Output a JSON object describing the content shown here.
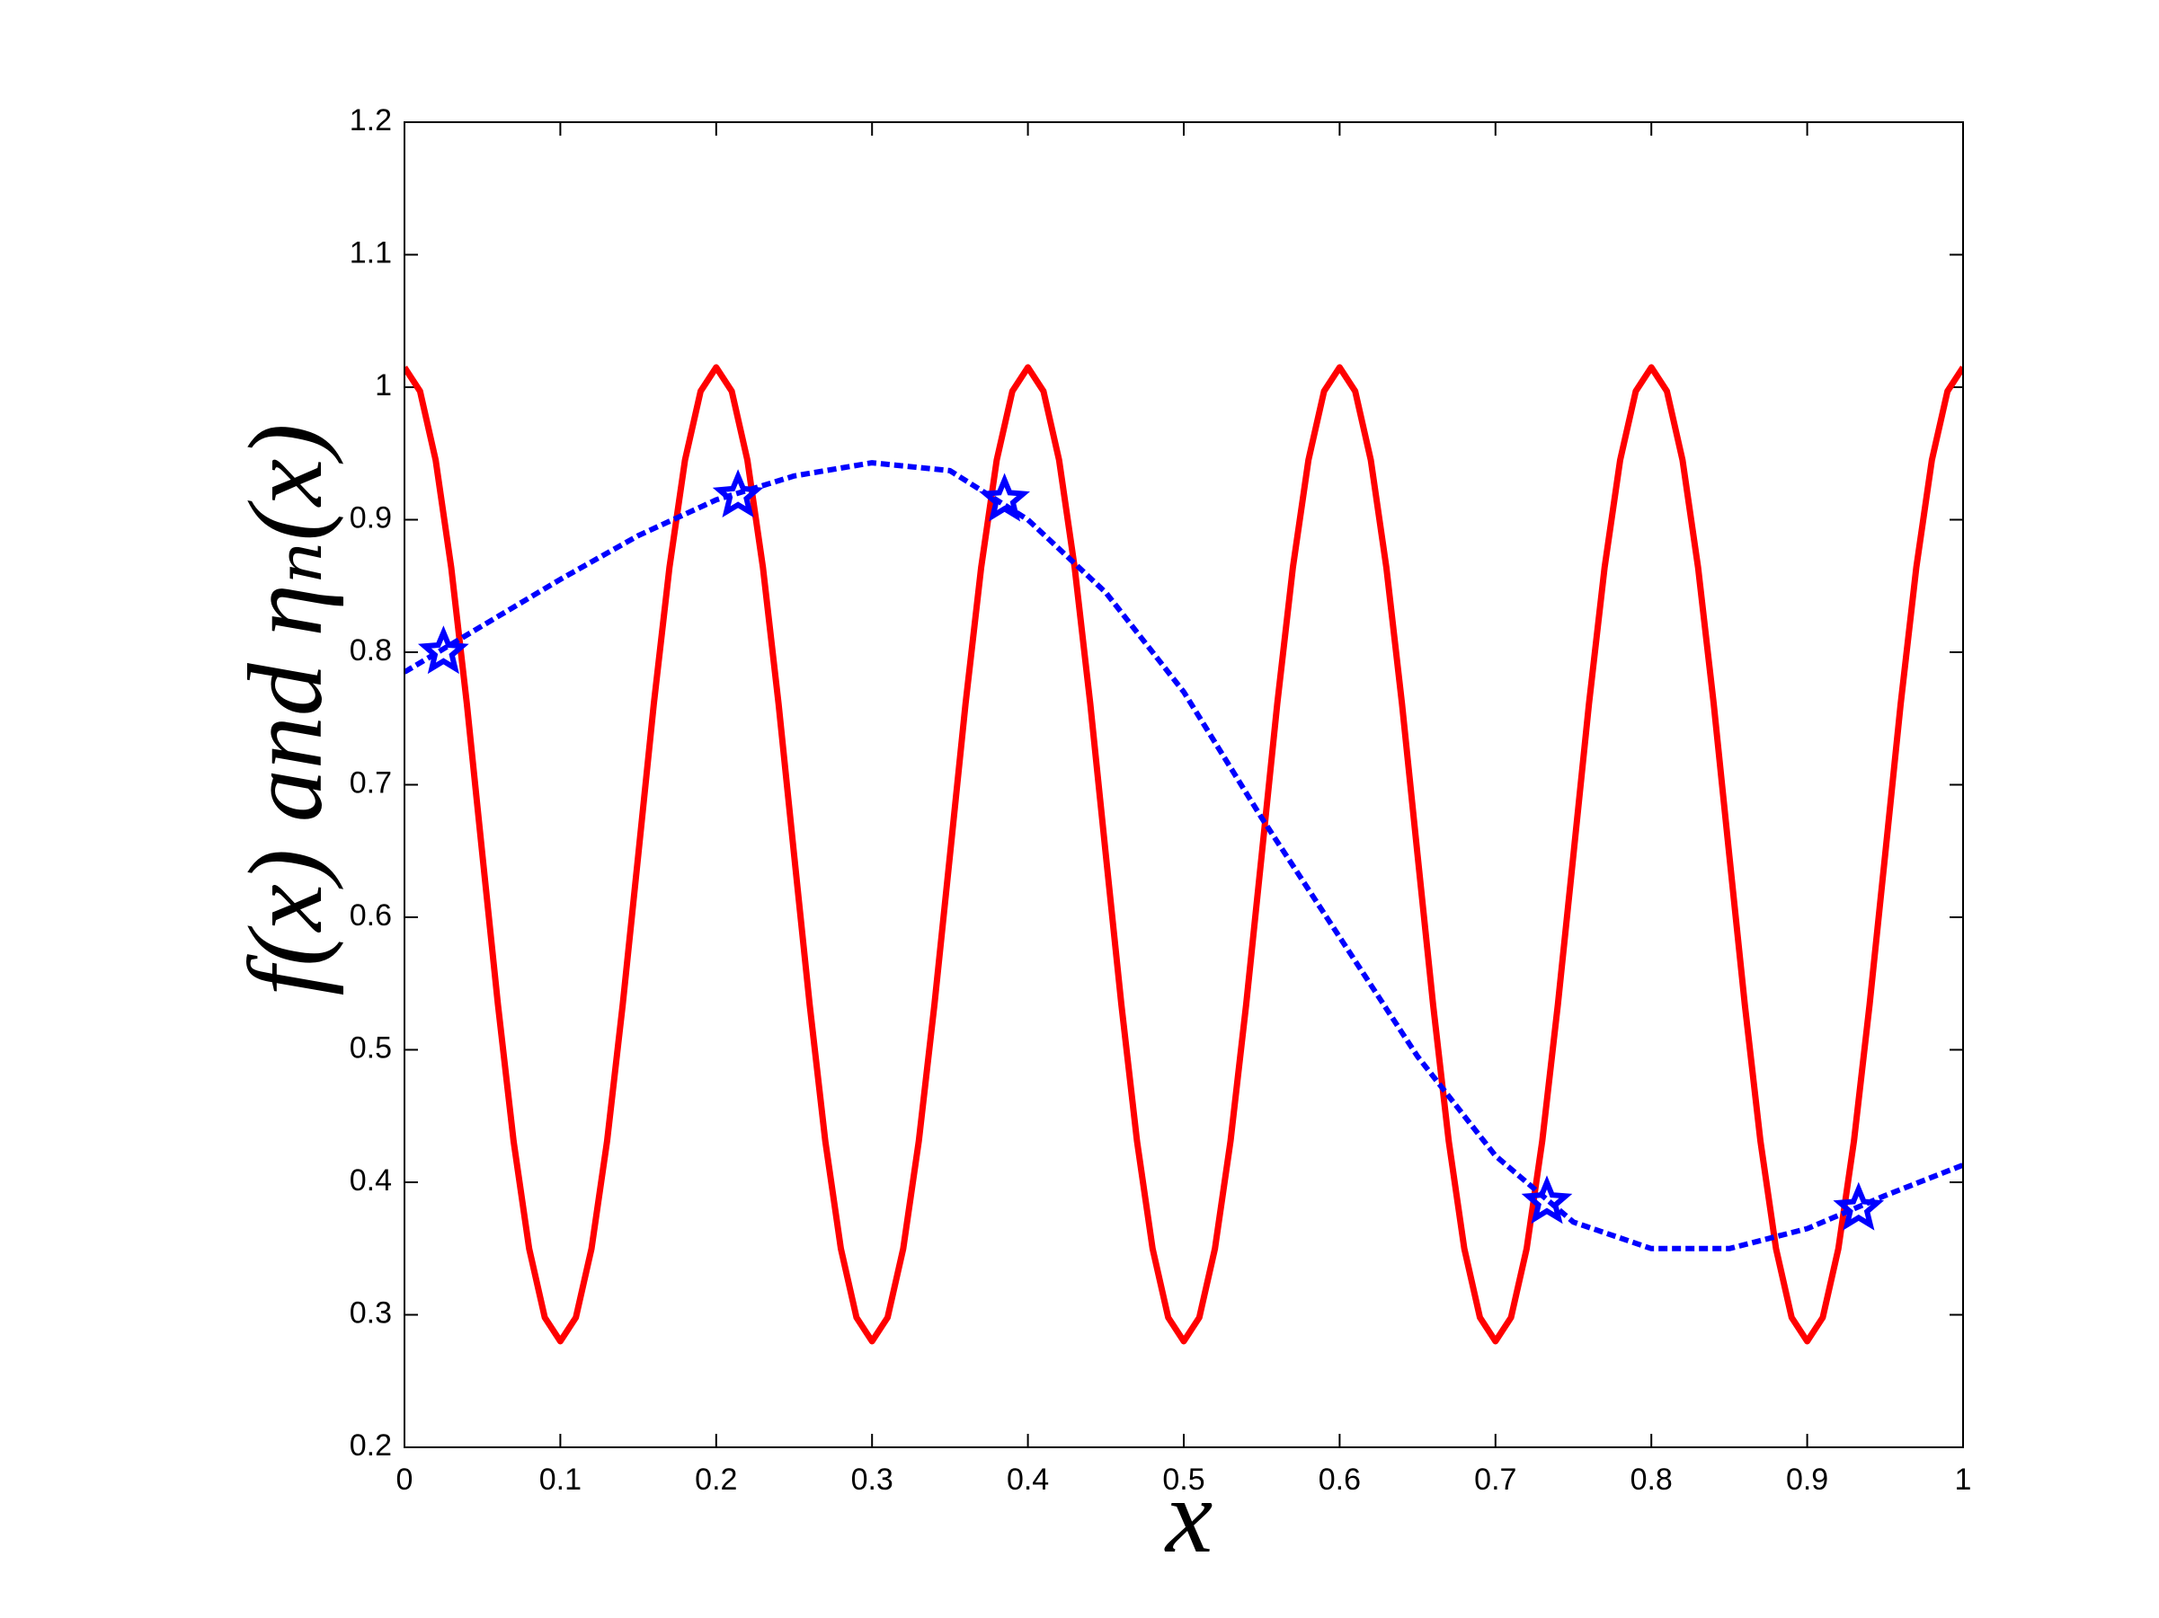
{
  "chart_data": {
    "type": "line",
    "xlabel": "x",
    "ylabel": "f(x) and ηₙ(x)",
    "xlim": [
      0,
      1
    ],
    "ylim": [
      0.2,
      1.2
    ],
    "xticks": [
      0,
      0.1,
      0.2,
      0.3,
      0.4,
      0.5,
      0.6,
      0.7,
      0.8,
      0.9,
      1
    ],
    "yticks": [
      0.2,
      0.3,
      0.4,
      0.5,
      0.6,
      0.7,
      0.8,
      0.9,
      1,
      1.1,
      1.2
    ],
    "grid": false,
    "series": [
      {
        "color": "#ff0000",
        "style": "solid",
        "x": [
          0,
          0.01,
          0.02,
          0.03,
          0.04,
          0.05,
          0.06,
          0.07,
          0.08,
          0.09,
          0.1,
          0.11,
          0.12,
          0.13,
          0.14,
          0.15,
          0.16,
          0.17,
          0.18,
          0.19,
          0.2,
          0.21,
          0.22,
          0.23,
          0.24,
          0.25,
          0.26,
          0.27,
          0.28,
          0.29,
          0.3,
          0.31,
          0.32,
          0.33,
          0.34,
          0.35,
          0.36,
          0.37,
          0.38,
          0.39,
          0.4,
          0.41,
          0.42,
          0.43,
          0.44,
          0.45,
          0.46,
          0.47,
          0.48,
          0.49,
          0.5,
          0.51,
          0.52,
          0.53,
          0.54,
          0.55,
          0.56,
          0.57,
          0.58,
          0.59,
          0.6,
          0.61,
          0.62,
          0.63,
          0.64,
          0.65,
          0.66,
          0.67,
          0.68,
          0.69,
          0.7,
          0.71,
          0.72,
          0.73,
          0.74,
          0.75,
          0.76,
          0.77,
          0.78,
          0.79,
          0.8,
          0.81,
          0.82,
          0.83,
          0.84,
          0.85,
          0.86,
          0.87,
          0.88,
          0.89,
          0.9,
          0.91,
          0.92,
          0.93,
          0.94,
          0.95,
          0.96,
          0.97,
          0.98,
          0.99,
          1
        ],
        "values": [
          1.015,
          0.997,
          0.945,
          0.864,
          0.761,
          0.647,
          0.534,
          0.431,
          0.35,
          0.298,
          0.28,
          0.298,
          0.35,
          0.431,
          0.534,
          0.647,
          0.761,
          0.864,
          0.945,
          0.997,
          1.015,
          0.997,
          0.945,
          0.864,
          0.761,
          0.647,
          0.534,
          0.431,
          0.35,
          0.298,
          0.28,
          0.298,
          0.35,
          0.431,
          0.534,
          0.647,
          0.761,
          0.864,
          0.945,
          0.997,
          1.015,
          0.997,
          0.945,
          0.864,
          0.761,
          0.647,
          0.534,
          0.431,
          0.35,
          0.298,
          0.28,
          0.298,
          0.35,
          0.431,
          0.534,
          0.647,
          0.761,
          0.864,
          0.945,
          0.997,
          1.015,
          0.997,
          0.945,
          0.864,
          0.761,
          0.647,
          0.534,
          0.431,
          0.35,
          0.298,
          0.28,
          0.298,
          0.35,
          0.431,
          0.534,
          0.647,
          0.761,
          0.864,
          0.945,
          0.997,
          1.015,
          0.997,
          0.945,
          0.864,
          0.761,
          0.647,
          0.534,
          0.431,
          0.35,
          0.298,
          0.28,
          0.298,
          0.35,
          0.431,
          0.534,
          0.647,
          0.761,
          0.864,
          0.945,
          0.997,
          1.015
        ]
      },
      {
        "color": "#0000ff",
        "style": "dashed",
        "x": [
          0,
          0.05,
          0.1,
          0.15,
          0.2,
          0.25,
          0.3,
          0.35,
          0.4,
          0.45,
          0.5,
          0.55,
          0.6,
          0.65,
          0.7,
          0.75,
          0.8,
          0.85,
          0.9,
          0.95,
          1
        ],
        "values": [
          0.785,
          0.82,
          0.855,
          0.888,
          0.915,
          0.933,
          0.943,
          0.937,
          0.9,
          0.845,
          0.77,
          0.675,
          0.585,
          0.495,
          0.42,
          0.37,
          0.35,
          0.35,
          0.365,
          0.39,
          0.413
        ]
      },
      {
        "color": "#0000ff",
        "style": "markers",
        "marker": "star",
        "x": [
          0.025,
          0.214,
          0.385,
          0.733,
          0.933
        ],
        "values": [
          0.8,
          0.918,
          0.915,
          0.385,
          0.38
        ]
      }
    ]
  }
}
